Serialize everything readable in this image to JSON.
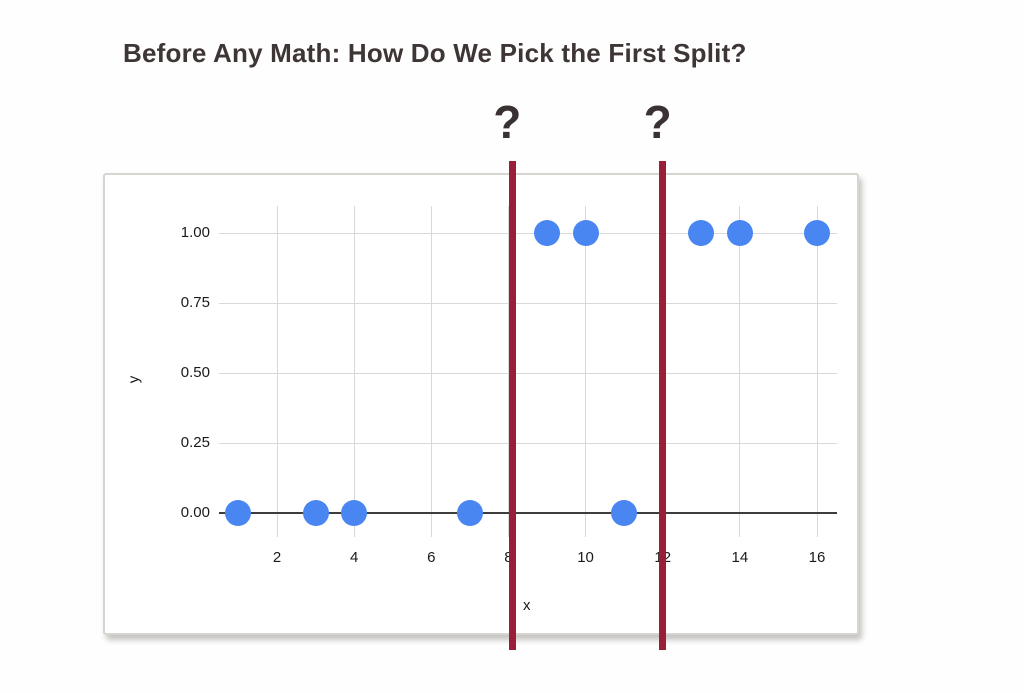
{
  "title": "Before Any Math: How Do We Pick the First Split?",
  "chart_data": {
    "type": "scatter",
    "title": "",
    "xlabel": "x",
    "ylabel": "y",
    "xlim": [
      0.5,
      16.5
    ],
    "ylim": [
      -0.09,
      1.1
    ],
    "grid": true,
    "legend": "none",
    "x_ticks": [
      2,
      4,
      6,
      8,
      10,
      12,
      14,
      16
    ],
    "y_ticks": [
      {
        "value": 0,
        "label": "0.00"
      },
      {
        "value": 0.25,
        "label": "0.25"
      },
      {
        "value": 0.5,
        "label": "0.50"
      },
      {
        "value": 0.75,
        "label": "0.75"
      },
      {
        "value": 1,
        "label": "1.00"
      }
    ],
    "series": [
      {
        "name": "points",
        "points": [
          {
            "x": 1,
            "y": 0
          },
          {
            "x": 3,
            "y": 0
          },
          {
            "x": 4,
            "y": 0
          },
          {
            "x": 7,
            "y": 0
          },
          {
            "x": 11,
            "y": 0
          },
          {
            "x": 9,
            "y": 1
          },
          {
            "x": 10,
            "y": 1
          },
          {
            "x": 13,
            "y": 1
          },
          {
            "x": 14,
            "y": 1
          },
          {
            "x": 16,
            "y": 1
          }
        ]
      }
    ],
    "split_candidates": [
      {
        "x": 8.1,
        "label": "?"
      },
      {
        "x": 12.0,
        "label": "?"
      }
    ],
    "colors": {
      "point": "#4a86f2",
      "split_line": "#9b1e38",
      "gridline": "#d9d9d9",
      "axis_line": "#3d3d3d",
      "title_text": "#3e3535",
      "question_mark": "#3a3132"
    }
  }
}
